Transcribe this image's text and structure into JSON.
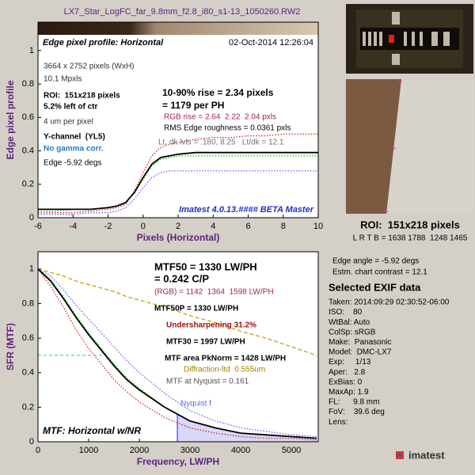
{
  "title": "LX7_Star_LogFC_far_9.8mm_f2.8_i80_s1-13_1050260.RW2",
  "chart_data": [
    {
      "type": "line",
      "title": "Edge pixel profile: Horizontal",
      "date": "02-Oct-2014 12:26:04",
      "footer": "Imatest 4.0.13.#### BETA Master",
      "x_label": "Pixels (Horizontal)",
      "y_label": "Edge pixel profile",
      "x": [
        -6,
        -5,
        -4,
        -3,
        -2,
        -1.5,
        -1,
        -0.5,
        0,
        0.5,
        1,
        1.5,
        2,
        3,
        4,
        5,
        6,
        7,
        8,
        9,
        10
      ],
      "series": [
        {
          "name": "R",
          "color": "#e02020",
          "style": "dotted",
          "values": [
            0.03,
            0.03,
            0.03,
            0.04,
            0.05,
            0.06,
            0.08,
            0.16,
            0.27,
            0.37,
            0.42,
            0.44,
            0.45,
            0.47,
            0.48,
            0.48,
            0.49,
            0.49,
            0.5,
            0.5,
            0.5
          ]
        },
        {
          "name": "G",
          "color": "#10c010",
          "style": "dotted",
          "values": [
            0.04,
            0.04,
            0.05,
            0.05,
            0.06,
            0.07,
            0.09,
            0.15,
            0.23,
            0.31,
            0.35,
            0.36,
            0.37,
            0.37,
            0.37,
            0.37,
            0.37,
            0.37,
            0.37,
            0.37,
            0.37
          ]
        },
        {
          "name": "B",
          "color": "#6060ff",
          "style": "dotted",
          "values": [
            0.02,
            0.02,
            0.02,
            0.03,
            0.03,
            0.04,
            0.06,
            0.11,
            0.18,
            0.24,
            0.27,
            0.28,
            0.28,
            0.28,
            0.28,
            0.28,
            0.28,
            0.28,
            0.28,
            0.28,
            0.28
          ]
        },
        {
          "name": "Y",
          "color": "#000000",
          "style": "solid",
          "values": [
            0.05,
            0.05,
            0.05,
            0.05,
            0.06,
            0.07,
            0.09,
            0.15,
            0.24,
            0.32,
            0.36,
            0.37,
            0.38,
            0.39,
            0.39,
            0.39,
            0.39,
            0.39,
            0.39,
            0.39,
            0.39
          ]
        }
      ],
      "xlim": [
        -6,
        10
      ],
      "ylim": [
        0,
        1.17
      ],
      "xticks": [
        -6,
        -4,
        -2,
        0,
        2,
        4,
        6,
        8,
        10
      ],
      "yticks": [
        0,
        0.2,
        0.4,
        0.6,
        0.8,
        1
      ],
      "annotations": [
        {
          "text": "3664 x 2752 pixels (WxH)",
          "color": "#303030"
        },
        {
          "text": "10.1 Mpxls",
          "color": "#303030"
        },
        {
          "text": "ROI:  151x218 pixels",
          "color": "#000000"
        },
        {
          "text": "5.2% left of ctr",
          "color": "#000000"
        },
        {
          "text": "4 um per pixel",
          "color": "#303030"
        },
        {
          "text": "Y-channel  (YL5)",
          "color": "#000000"
        },
        {
          "text": "No gamma corr.",
          "color": "#2080c0"
        },
        {
          "text": "Edge -5.92 degs",
          "color": "#000000"
        },
        {
          "text": "10-90% rise = 2.34 pixels",
          "color": "#000000"
        },
        {
          "text": "= 1179 per PH",
          "color": "#000000"
        },
        {
          "text": "RGB rise = 2.64  2.22  2.04 pxls",
          "color": "#a02060"
        },
        {
          "text": "RMS Edge roughness = 0.0361 pxls",
          "color": "#000000"
        },
        {
          "text": "Lt, dk lvls = .180, 8.25   Lt/dk = 12.1",
          "color": "#707070"
        }
      ]
    },
    {
      "type": "line",
      "title": "MTF: Horizontal w/NR",
      "x_label": "Frequency, LW/PH",
      "y_label": "SFR (MTF)",
      "x": [
        0,
        250,
        500,
        750,
        1000,
        1250,
        1500,
        1750,
        2000,
        2500,
        3000,
        3500,
        4000,
        4500,
        5000,
        5500
      ],
      "series": [
        {
          "name": "Diffraction",
          "color": "#c8a000",
          "style": "dashed",
          "values": [
            1,
            0.98,
            0.96,
            0.93,
            0.91,
            0.89,
            0.87,
            0.84,
            0.82,
            0.78,
            0.73,
            0.69,
            0.64,
            0.6,
            0.55,
            0.5
          ]
        },
        {
          "name": "R",
          "color": "#e02020",
          "style": "dotted",
          "values": [
            1,
            0.9,
            0.78,
            0.65,
            0.54,
            0.45,
            0.36,
            0.29,
            0.23,
            0.14,
            0.08,
            0.05,
            0.03,
            0.02,
            0.02,
            0.01
          ]
        },
        {
          "name": "B",
          "color": "#6060ff",
          "style": "dotted",
          "values": [
            1,
            0.96,
            0.88,
            0.79,
            0.71,
            0.63,
            0.55,
            0.47,
            0.4,
            0.28,
            0.18,
            0.12,
            0.08,
            0.06,
            0.04,
            0.03
          ]
        },
        {
          "name": "G",
          "color": "#10c010",
          "style": "dotted",
          "values": [
            1,
            0.94,
            0.84,
            0.73,
            0.63,
            0.54,
            0.45,
            0.37,
            0.31,
            0.2,
            0.12,
            0.08,
            0.05,
            0.04,
            0.03,
            0.02
          ]
        },
        {
          "name": "Y",
          "color": "#000000",
          "style": "solid",
          "values": [
            1,
            0.93,
            0.83,
            0.72,
            0.62,
            0.53,
            0.44,
            0.36,
            0.3,
            0.2,
            0.12,
            0.08,
            0.05,
            0.04,
            0.03,
            0.02
          ]
        }
      ],
      "xlim": [
        0,
        5530
      ],
      "ylim": [
        0,
        1.1
      ],
      "xticks": [
        0,
        1000,
        2000,
        3000,
        4000,
        5000
      ],
      "yticks": [
        0,
        0.2,
        0.4,
        0.6,
        0.8,
        1
      ],
      "reference_line": {
        "y": 0.5,
        "x_end": 1330,
        "color": "#20c0e0"
      },
      "nyquist": {
        "x": 2750,
        "label": "Nyquist f",
        "color": "#6060ff"
      },
      "annotations": [
        {
          "text": "MTF50 = 1330 LW/PH",
          "color": "#000000"
        },
        {
          "text": "= 0.242 C/P",
          "color": "#000000"
        },
        {
          "text": "(RGB) = 1142  1364  1598 LW/PH",
          "color": "#a02060"
        },
        {
          "text": "MTF50P = 1330 LW/PH",
          "color": "#000000"
        },
        {
          "text": "Undersharpening 31.2%",
          "color": "#a01010"
        },
        {
          "text": "MTF30 = 1997 LW/PH",
          "color": "#000000"
        },
        {
          "text": "MTF area PkNorm = 1428 LW/PH",
          "color": "#000000"
        },
        {
          "text": "Diffraction-ltd  0.555um",
          "color": "#a08000"
        },
        {
          "text": "MTF at Nyquist = 0.161",
          "color": "#505050"
        }
      ]
    }
  ],
  "roi_panel": {
    "roi": "ROI:  151x218 pixels",
    "lrtb": "L R T B = 1638 1788  1248 1465",
    "edge_angle": "Edge angle = -5.92 degs",
    "contrast": "Estm. chart contrast = 12.1"
  },
  "exif": {
    "title": "Selected EXIF data",
    "lines": [
      "Taken: 2014:09:29 02:30:52-06:00",
      "ISO:    80",
      "WtBal: Auto",
      "ColSp: sRGB",
      "Make:  Panasonic",
      "Model:  DMC-LX7",
      "Exp:     1/13",
      "Aper:   2.8",
      "ExBias: 0",
      "MaxAp: 1.9",
      "FL:      9.8 mm",
      "FoV:    39.6 deg",
      "Lens:"
    ]
  },
  "logo": "imatest"
}
